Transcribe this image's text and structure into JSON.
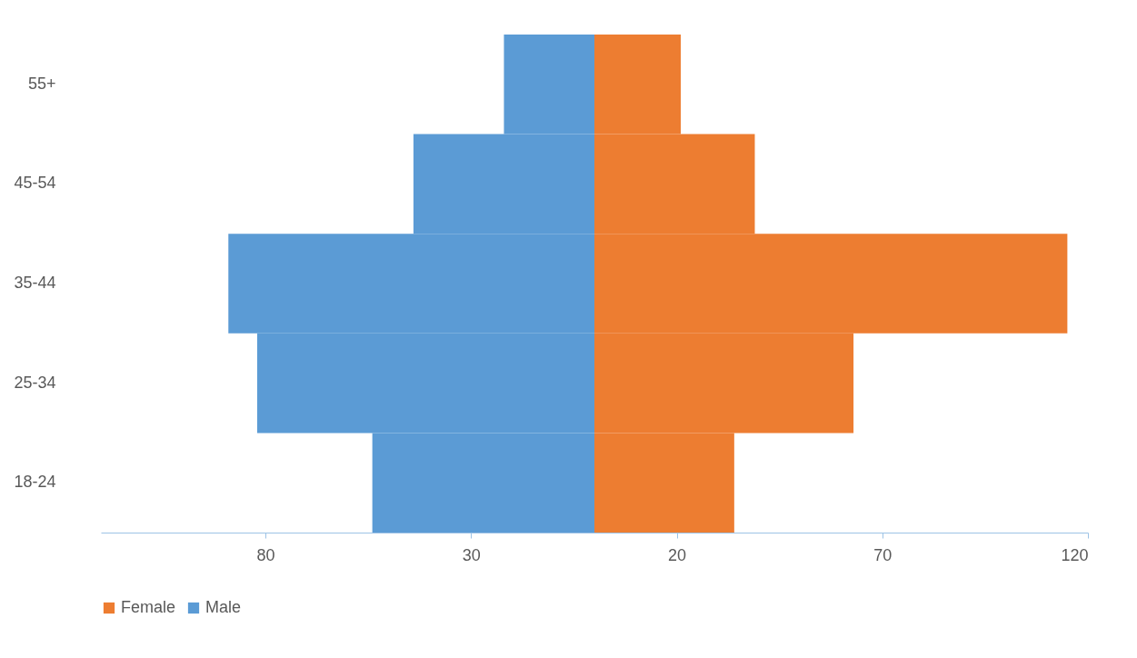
{
  "chart_data": {
    "type": "bar",
    "orientation": "horizontal",
    "stacked": true,
    "categories": [
      "55+",
      "45-54",
      "35-44",
      "25-34",
      "18-24"
    ],
    "series": [
      {
        "name": "Male",
        "color": "#5b9bd5",
        "values": [
          -22,
          -44,
          -89,
          -82,
          -54
        ]
      },
      {
        "name": "Female",
        "color": "#ed7d31",
        "values": [
          21,
          39,
          115,
          63,
          34
        ]
      }
    ],
    "xlim": [
      -120,
      120
    ],
    "xticks": [
      {
        "value": -80,
        "label": "80"
      },
      {
        "value": -30,
        "label": "30"
      },
      20,
      70,
      120
    ],
    "legend": "bottom",
    "grid": false
  }
}
